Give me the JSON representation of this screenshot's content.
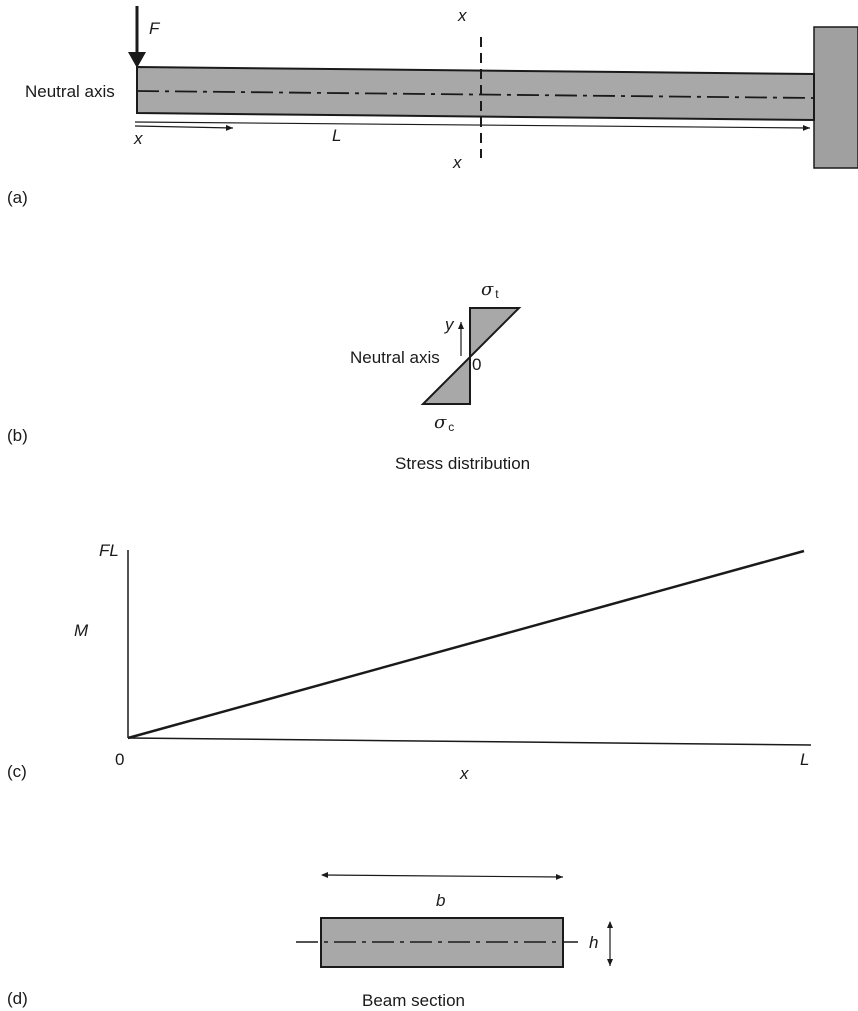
{
  "panel_a": {
    "tag": "(a)",
    "force_label": "F",
    "neutral_axis_label": "Neutral axis",
    "x_arrow_label": "x",
    "length_label": "L",
    "section_top_label": "x",
    "section_bottom_label": "x"
  },
  "panel_b": {
    "tag": "(b)",
    "sigma_t_symbol": "σ",
    "sigma_t_sub": "t",
    "sigma_c_symbol": "σ",
    "sigma_c_sub": "c",
    "y_label": "y",
    "neutral_axis_label": "Neutral axis",
    "zero_label": "0",
    "caption": "Stress distribution"
  },
  "panel_c": {
    "tag": "(c)",
    "y_top_label": "FL",
    "y_axis_label": "M",
    "origin_label": "0",
    "x_end_label": "L",
    "x_axis_label": "x"
  },
  "panel_d": {
    "tag": "(d)",
    "width_label": "b",
    "height_label": "h",
    "caption": "Beam section"
  },
  "colors": {
    "beam_fill": "#a8a8a8",
    "wall_fill": "#a0a0a0",
    "stroke": "#1a1a1a"
  }
}
